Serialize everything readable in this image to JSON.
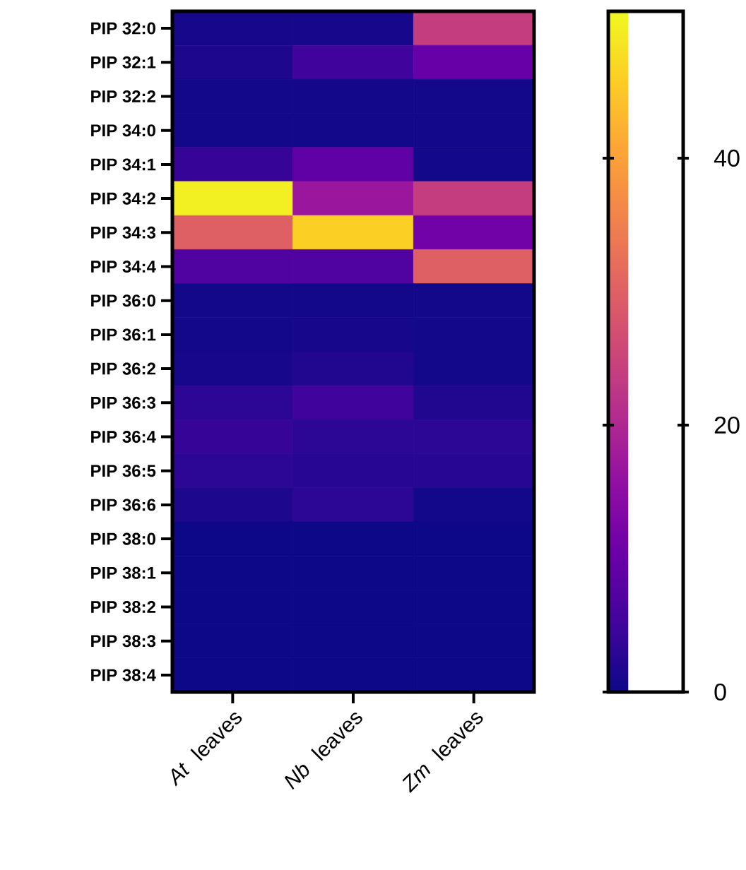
{
  "chart_data": {
    "type": "heatmap",
    "categories": [
      "*At* leaves",
      "*Nb* leaves",
      "*Zm* leaves"
    ],
    "y_categories": [
      "PIP 32:0",
      "PIP 32:1",
      "PIP 32:2",
      "PIP 34:0",
      "PIP 34:1",
      "PIP 34:2",
      "PIP 34:3",
      "PIP 34:4",
      "PIP 36:0",
      "PIP 36:1",
      "PIP 36:2",
      "PIP 36:3",
      "PIP 36:4",
      "PIP 36:5",
      "PIP 36:6",
      "PIP 38:0",
      "PIP 38:1",
      "PIP 38:2",
      "PIP 38:3",
      "PIP 38:4"
    ],
    "cells": [
      [
        1,
        1,
        24
      ],
      [
        1.5,
        5,
        10
      ],
      [
        0.5,
        0.5,
        0.5
      ],
      [
        0.5,
        0.5,
        0.5
      ],
      [
        4,
        9,
        0.5
      ],
      [
        50,
        17,
        24
      ],
      [
        30,
        46,
        11
      ],
      [
        7,
        7,
        30
      ],
      [
        0.5,
        0.5,
        0.5
      ],
      [
        0.5,
        1,
        0.5
      ],
      [
        1,
        2,
        0.5
      ],
      [
        3,
        5,
        2
      ],
      [
        4,
        3,
        3
      ],
      [
        3,
        2.5,
        2.5
      ],
      [
        1.5,
        3,
        0.5
      ],
      [
        0,
        0,
        0
      ],
      [
        0,
        0,
        0
      ],
      [
        0,
        0,
        0
      ],
      [
        0,
        0,
        0
      ],
      [
        0,
        0,
        0
      ]
    ],
    "clim": [
      0,
      51
    ],
    "cticks": [
      0,
      20,
      40
    ]
  }
}
